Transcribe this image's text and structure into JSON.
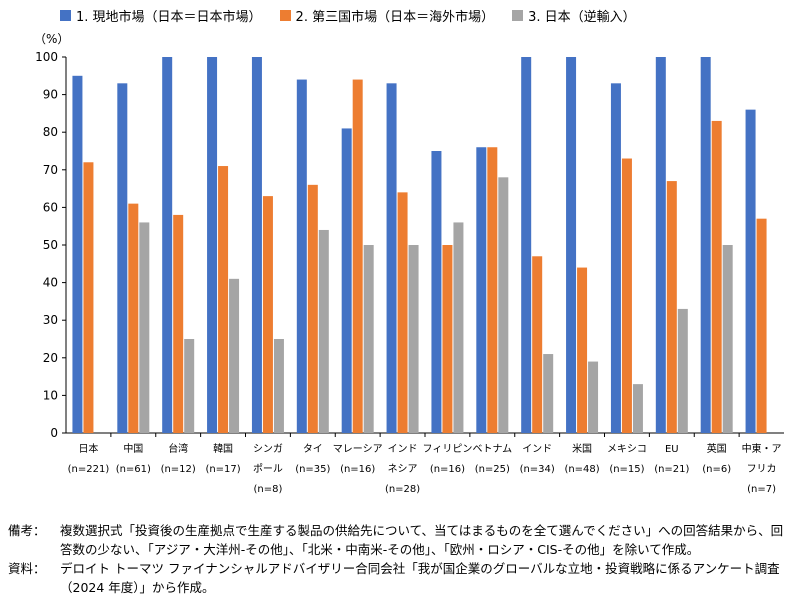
{
  "chart_data": {
    "type": "bar",
    "ylabel": "（%）",
    "ylim": [
      0,
      100
    ],
    "yticks": [
      0,
      10,
      20,
      30,
      40,
      50,
      60,
      70,
      80,
      90,
      100
    ],
    "grid": false,
    "legend_position": "top",
    "categories": [
      {
        "name": [
          "日本"
        ],
        "n": [
          "(n=221)"
        ]
      },
      {
        "name": [
          "中国"
        ],
        "n": [
          "(n=61)"
        ]
      },
      {
        "name": [
          "台湾"
        ],
        "n": [
          "(n=12)"
        ]
      },
      {
        "name": [
          "韓国"
        ],
        "n": [
          "(n=17)"
        ]
      },
      {
        "name": [
          "シンガ",
          "ポール"
        ],
        "n": [
          "(n=8)"
        ]
      },
      {
        "name": [
          "タイ"
        ],
        "n": [
          "(n=35)"
        ]
      },
      {
        "name": [
          "マレーシア"
        ],
        "n": [
          "(n=16)"
        ]
      },
      {
        "name": [
          "インド",
          "ネシア"
        ],
        "n": [
          "(n=28)"
        ]
      },
      {
        "name": [
          "フィリピン"
        ],
        "n": [
          "(n=16)"
        ]
      },
      {
        "name": [
          "ベトナム"
        ],
        "n": [
          "(n=25)"
        ]
      },
      {
        "name": [
          "インド"
        ],
        "n": [
          "(n=34)"
        ]
      },
      {
        "name": [
          "米国"
        ],
        "n": [
          "(n=48)"
        ]
      },
      {
        "name": [
          "メキシコ"
        ],
        "n": [
          "(n=15)"
        ]
      },
      {
        "name": [
          "EU"
        ],
        "n": [
          "(n=21)"
        ]
      },
      {
        "name": [
          "英国"
        ],
        "n": [
          "(n=6)"
        ]
      },
      {
        "name": [
          "中東・ア",
          "フリカ"
        ],
        "n": [
          "(n=7)"
        ]
      }
    ],
    "series": [
      {
        "name": "1. 現地市場（日本＝日本市場）",
        "color": "#4472c4",
        "values": [
          95,
          93,
          100,
          100,
          100,
          94,
          81,
          93,
          75,
          76,
          100,
          100,
          93,
          100,
          100,
          86
        ]
      },
      {
        "name": "2. 第三国市場（日本＝海外市場）",
        "color": "#ed7d31",
        "values": [
          72,
          61,
          58,
          71,
          63,
          66,
          94,
          64,
          50,
          76,
          47,
          44,
          73,
          67,
          83,
          57
        ]
      },
      {
        "name": "3. 日本（逆輸入）",
        "color": "#a5a5a5",
        "values": [
          null,
          56,
          25,
          41,
          25,
          54,
          50,
          50,
          56,
          68,
          21,
          19,
          13,
          33,
          50,
          null
        ]
      }
    ]
  },
  "notes": {
    "remarks_label": "備考：",
    "remarks_text": "複数選択式「投資後の生産拠点で生産する製品の供給先について、当てはまるものを全て選んでください」への回答結果から、回答数の少ない、「アジア・大洋州-その他」、「北米・中南米-その他」、「欧州・ロシア・CIS-その他」を除いて作成。",
    "source_label": "資料：",
    "source_text": "デロイト トーマツ ファイナンシャルアドバイザリー合同会社「我が国企業のグローバルな立地・投資戦略に係るアンケート調査（2024 年度）」から作成。"
  }
}
